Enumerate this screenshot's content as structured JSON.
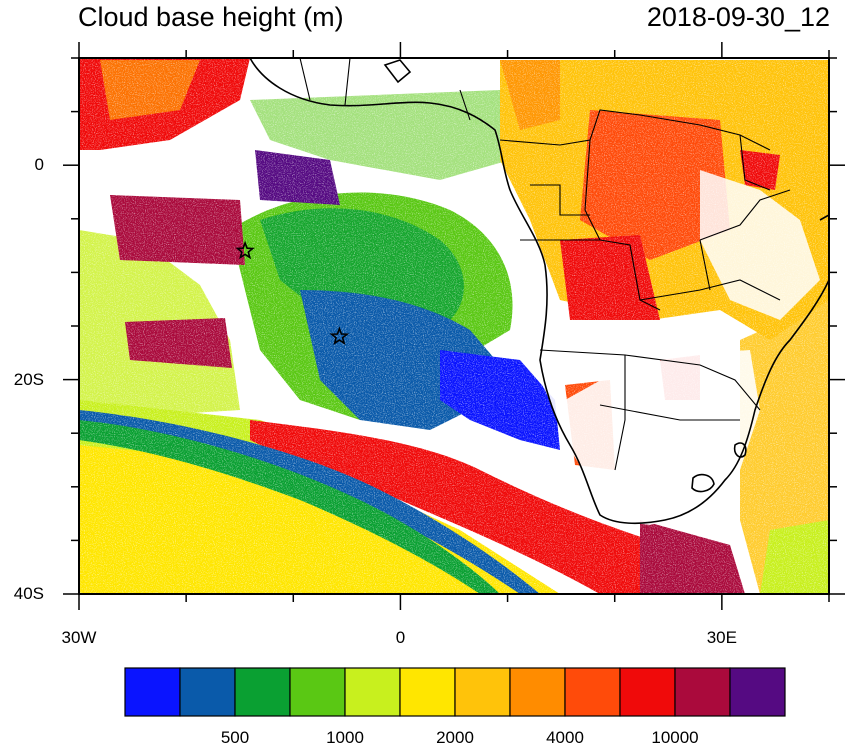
{
  "header": {
    "title": "Cloud base height (m)",
    "date": "2018-09-30_12"
  },
  "axes": {
    "x_ticks": [
      {
        "label": "30W",
        "lon": -30
      },
      {
        "label": "0",
        "lon": 0
      },
      {
        "label": "30E",
        "lon": 30
      }
    ],
    "y_ticks": [
      {
        "label": "0",
        "lat": 0
      },
      {
        "label": "20S",
        "lat": -20
      },
      {
        "label": "40S",
        "lat": -40
      }
    ],
    "lon_range": [
      -30,
      40
    ],
    "lat_range": [
      -40,
      10
    ]
  },
  "markers": [
    {
      "name": "star-marker-west",
      "lon": -14.5,
      "lat": -8
    },
    {
      "name": "star-marker-central",
      "lon": -5.7,
      "lat": -16
    }
  ],
  "colorbar": {
    "colors": [
      "#0a14ff",
      "#0a5aaa",
      "#0aa032",
      "#5ac814",
      "#c8f01e",
      "#ffe600",
      "#ffc30a",
      "#ff8c00",
      "#ff4b0a",
      "#f00a0a",
      "#aa0a3c",
      "#550a82"
    ],
    "labels": [
      {
        "text": "500",
        "boundary": 2
      },
      {
        "text": "1000",
        "boundary": 4
      },
      {
        "text": "2000",
        "boundary": 6
      },
      {
        "text": "4000",
        "boundary": 8
      },
      {
        "text": "10000",
        "boundary": 10
      }
    ]
  }
}
